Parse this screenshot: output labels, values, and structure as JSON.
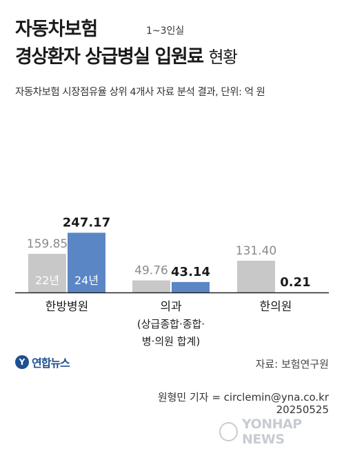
{
  "title": {
    "line1": "자동차보험",
    "badge": "1~3인실",
    "line2_bold": "경상환자 상급병실 입원료",
    "line2_light": "현황"
  },
  "subtitle": "자동차보험 시장점유율 상위 4개사 자료 분석 결과, 단위: 억 원",
  "chart_data": {
    "type": "bar",
    "categories": [
      [
        "한방병원"
      ],
      [
        "의과",
        "(상급종합·종합·",
        "병·의원 합계)"
      ],
      [
        "한의원"
      ]
    ],
    "series": [
      {
        "name": "22년",
        "values": [
          159.85,
          49.76,
          131.4
        ],
        "labels": [
          "159.85",
          "49.76",
          "131.40"
        ],
        "color": "#c8c8c8"
      },
      {
        "name": "24년",
        "values": [
          247.17,
          43.14,
          0.21
        ],
        "labels": [
          "247.17",
          "43.14",
          "0.21"
        ],
        "color": "#5b86c5"
      }
    ],
    "unit": "억 원",
    "ylim": [
      0,
      260
    ]
  },
  "source": "자료: 보험연구원",
  "reporter": "원형민 기자 = circlemin@yna.co.kr",
  "date": "20250525",
  "logo": {
    "text": "연합뉴스",
    "icon": "yonhap-logo-icon"
  },
  "watermark": "YONHAP NEWS"
}
